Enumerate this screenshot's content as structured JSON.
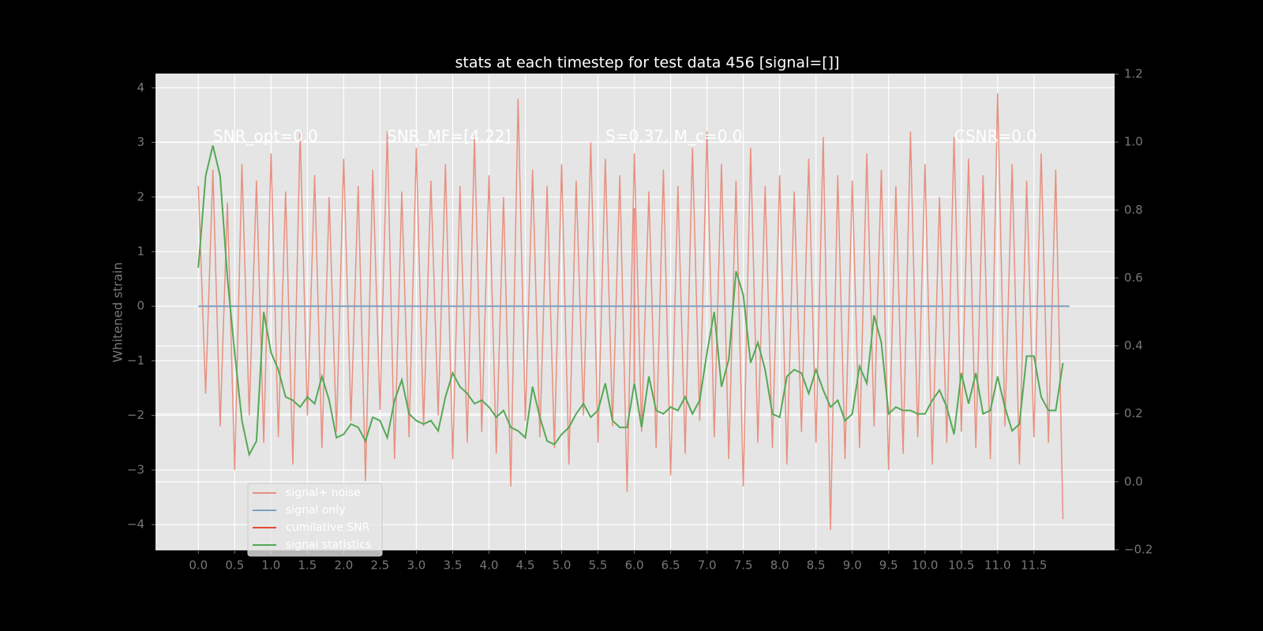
{
  "chart_data": {
    "type": "line",
    "title": "stats at each timestep for test data 456 [signal=[]]",
    "ylabel": "Whitened strain",
    "annotations": [
      "SNR_opt=0.0",
      "SNR_MF=[4.22]",
      "S=0.37, M_c=0.0",
      "CSNR=0.0"
    ],
    "xlim": [
      -0.59,
      12.61
    ],
    "ylim": [
      -4.46,
      4.25
    ],
    "y2lim": [
      -0.2,
      1.2
    ],
    "xticks": [
      {
        "value": 0,
        "label": "0.0"
      },
      0.5,
      {
        "value": 1,
        "label": "1.0"
      },
      1.5,
      {
        "value": 2,
        "label": "2.0"
      },
      2.5,
      {
        "value": 3,
        "label": "3.0"
      },
      3.5,
      {
        "value": 4,
        "label": "4.0"
      },
      4.5,
      {
        "value": 5,
        "label": "5.0"
      },
      5.5,
      {
        "value": 6,
        "label": "6.0"
      },
      6.5,
      {
        "value": 7,
        "label": "7.0"
      },
      7.5,
      {
        "value": 8,
        "label": "8.0"
      },
      8.5,
      {
        "value": 9,
        "label": "9.0"
      },
      9.5,
      {
        "value": 10,
        "label": "10.0"
      },
      10.5,
      {
        "value": 11,
        "label": "11.0"
      },
      11.5
    ],
    "yticks": [
      {
        "value": -4,
        "label": "−4"
      },
      {
        "value": -3,
        "label": "−3"
      },
      {
        "value": -2,
        "label": "−2"
      },
      {
        "value": -1,
        "label": "−1"
      },
      0,
      1,
      2,
      3,
      4
    ],
    "y2ticks": [
      {
        "value": -0.2,
        "label": "−0.2"
      },
      {
        "value": 0,
        "label": "0.0"
      },
      0.2,
      0.4,
      0.6,
      0.8,
      {
        "value": 1,
        "label": "1.0"
      },
      1.2
    ],
    "grid": true,
    "legend": "lower left",
    "x": [
      0.0,
      0.1,
      0.2,
      0.3,
      0.4,
      0.5,
      0.6,
      0.7,
      0.8,
      0.9,
      1.0,
      1.1,
      1.2,
      1.3,
      1.4,
      1.5,
      1.6,
      1.7,
      1.8,
      1.9,
      2.0,
      2.1,
      2.2,
      2.3,
      2.4,
      2.5,
      2.6,
      2.7,
      2.8,
      2.9,
      3.0,
      3.1,
      3.2,
      3.3,
      3.4,
      3.5,
      3.6,
      3.7,
      3.8,
      3.9,
      4.0,
      4.1,
      4.2,
      4.3,
      4.4,
      4.5,
      4.6,
      4.7,
      4.8,
      4.9,
      5.0,
      5.1,
      5.2,
      5.3,
      5.4,
      5.5,
      5.6,
      5.7,
      5.8,
      5.9,
      6.0,
      6.1,
      6.2,
      6.3,
      6.4,
      6.5,
      6.6,
      6.7,
      6.8,
      6.9,
      7.0,
      7.1,
      7.2,
      7.3,
      7.4,
      7.5,
      7.6,
      7.7,
      7.8,
      7.9,
      8.0,
      8.1,
      8.2,
      8.3,
      8.4,
      8.5,
      8.6,
      8.7,
      8.8,
      8.9,
      9.0,
      9.1,
      9.2,
      9.3,
      9.4,
      9.5,
      9.6,
      9.7,
      9.8,
      9.9,
      10.0,
      10.1,
      10.2,
      10.3,
      10.4,
      10.5,
      10.6,
      10.7,
      10.8,
      10.9,
      11.0,
      11.1,
      11.2,
      11.3,
      11.4,
      11.5,
      11.6,
      11.7,
      11.8,
      11.9
    ],
    "series": [
      {
        "name": "signal+ noise",
        "color": "#e8907f",
        "values": [
          2.2,
          -1.6,
          2.5,
          -2.2,
          1.9,
          -3.0,
          2.6,
          -2.0,
          2.3,
          -2.5,
          2.8,
          -2.4,
          2.1,
          -2.9,
          3.2,
          -2.0,
          2.4,
          -2.6,
          2.0,
          -2.3,
          2.7,
          -2.1,
          2.2,
          -3.2,
          2.5,
          -1.9,
          3.2,
          -2.8,
          2.1,
          -2.4,
          2.9,
          -2.2,
          2.3,
          -2.0,
          2.6,
          -2.8,
          2.2,
          -2.5,
          3.1,
          -2.3,
          2.4,
          -2.7,
          2.0,
          -3.3,
          3.8,
          -2.1,
          2.5,
          -2.4,
          2.2,
          -2.6,
          2.6,
          -2.9,
          2.3,
          -2.0,
          3.0,
          -2.5,
          2.7,
          -2.2,
          2.4,
          -3.4,
          2.8,
          -2.3,
          2.1,
          -2.6,
          2.5,
          -3.1,
          2.2,
          -2.7,
          2.9,
          -2.1,
          3.2,
          -2.4,
          2.6,
          -2.8,
          2.3,
          -3.3,
          2.9,
          -2.5,
          2.2,
          -2.6,
          2.4,
          -2.9,
          2.1,
          -2.3,
          2.7,
          -2.5,
          3.1,
          -4.1,
          2.4,
          -2.8,
          2.3,
          -2.6,
          2.8,
          -2.2,
          2.5,
          -3.0,
          2.2,
          -2.7,
          3.2,
          -2.4,
          2.6,
          -2.9,
          2.0,
          -2.5,
          3.1,
          -2.3,
          2.7,
          -2.6,
          2.4,
          -2.8,
          3.9,
          -2.2,
          2.6,
          -2.9,
          2.3,
          -2.4,
          2.8,
          -2.5,
          2.5,
          -3.9
        ]
      },
      {
        "name": "signal only",
        "color": "#7f9fbf",
        "x": [
          0,
          11.99
        ],
        "values": [
          0,
          0
        ]
      },
      {
        "name": "cumilative SNR",
        "color": "#e24a33",
        "x": [
          6,
          6
        ],
        "values": [
          1.8,
          -1.4
        ]
      },
      {
        "name": "signal statistics",
        "color": "#55a855",
        "axis": "y2",
        "values": [
          0.63,
          0.9,
          0.99,
          0.9,
          0.6,
          0.38,
          0.18,
          0.08,
          0.12,
          0.5,
          0.38,
          0.33,
          0.25,
          0.24,
          0.22,
          0.25,
          0.23,
          0.31,
          0.24,
          0.13,
          0.14,
          0.17,
          0.16,
          0.12,
          0.19,
          0.18,
          0.13,
          0.24,
          0.3,
          0.2,
          0.18,
          0.17,
          0.18,
          0.15,
          0.25,
          0.32,
          0.28,
          0.26,
          0.23,
          0.24,
          0.22,
          0.19,
          0.21,
          0.16,
          0.15,
          0.13,
          0.28,
          0.19,
          0.12,
          0.11,
          0.14,
          0.16,
          0.2,
          0.23,
          0.19,
          0.21,
          0.29,
          0.18,
          0.16,
          0.16,
          0.29,
          0.16,
          0.31,
          0.21,
          0.2,
          0.22,
          0.21,
          0.25,
          0.2,
          0.24,
          0.38,
          0.5,
          0.28,
          0.36,
          0.62,
          0.55,
          0.35,
          0.41,
          0.33,
          0.2,
          0.19,
          0.31,
          0.33,
          0.32,
          0.26,
          0.33,
          0.27,
          0.22,
          0.24,
          0.18,
          0.2,
          0.34,
          0.29,
          0.49,
          0.41,
          0.2,
          0.22,
          0.21,
          0.21,
          0.2,
          0.2,
          0.24,
          0.27,
          0.22,
          0.14,
          0.32,
          0.23,
          0.32,
          0.2,
          0.21,
          0.31,
          0.22,
          0.15,
          0.17,
          0.37,
          0.37,
          0.25,
          0.21,
          0.21,
          0.35
        ]
      }
    ]
  }
}
